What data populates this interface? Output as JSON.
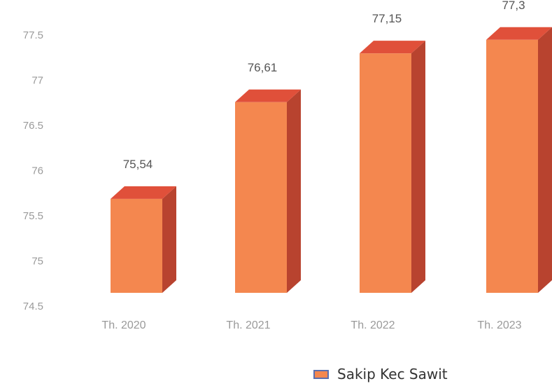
{
  "chart_data": {
    "type": "bar",
    "style": "3d-column",
    "categories": [
      "Th. 2020",
      "Th. 2021",
      "Th. 2022",
      "Th. 2023"
    ],
    "series": [
      {
        "name": "Sakip Kec Sawit",
        "values": [
          75.54,
          76.61,
          77.15,
          77.3
        ]
      }
    ],
    "data_labels": [
      "75,54",
      "76,61",
      "77,15",
      "77,3"
    ],
    "yticks": [
      "74.5",
      "75",
      "75.5",
      "76",
      "76.5",
      "77",
      "77.5"
    ],
    "ylim": [
      74.5,
      77.5
    ],
    "grid": false,
    "legend_position": "bottom-right",
    "colors": {
      "front": "#f4874f",
      "top": "#e0503a",
      "side": "#b8432f",
      "legend_border": "#5b6fb0"
    }
  }
}
